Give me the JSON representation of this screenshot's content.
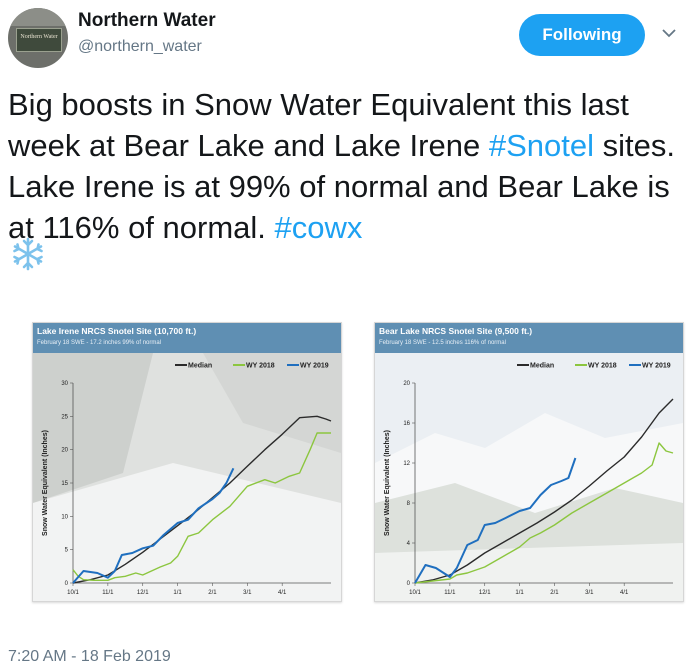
{
  "header": {
    "display_name": "Northern Water",
    "handle": "@northern_water",
    "follow_label": "Following",
    "avatar_icon": "northern-water-sign-avatar",
    "chevron_icon": "chevron-down-icon"
  },
  "tweet": {
    "text_1": "Big boosts in Snow Water Equivalent this last week at Bear Lake and Lake Irene ",
    "hashtag_snotel": "#Snotel",
    "text_2": " sites. Lake Irene is at 99% of normal and Bear Lake is at 116% of normal. ",
    "hashtag_cowx": "#cowx",
    "emoji": "snowflake-icon"
  },
  "timestamp": "7:20 AM - 18 Feb 2019",
  "colors": {
    "accent": "#1da1f2",
    "median": "#2b2b2b",
    "wy2018": "#8cc63f",
    "wy2019": "#1f6fbf",
    "chart_header": "#5f8fb3"
  },
  "chart_data": [
    {
      "type": "line",
      "title": "Lake Irene NRCS Snotel Site (10,700 ft.)",
      "subtitle": "February 18 SWE - 17.2 inches   99% of normal",
      "ylabel": "Snow Water Equivalent (Inches)",
      "xlabel": "",
      "ylim": [
        0,
        30
      ],
      "yticks": [
        0,
        5,
        10,
        15,
        20,
        25,
        30
      ],
      "xlim": [
        0,
        7.4
      ],
      "xtick_labels": [
        "10/1",
        "11/1",
        "12/1",
        "1/1",
        "2/1",
        "3/1",
        "4/1"
      ],
      "legend": "top-right",
      "grid": false,
      "series": [
        {
          "name": "Median",
          "color": "#2b2b2b",
          "x": [
            0,
            0.5,
            1,
            1.5,
            2,
            2.5,
            3,
            3.5,
            4,
            4.5,
            5,
            5.5,
            6,
            6.5,
            7,
            7.25,
            7.4
          ],
          "y": [
            0,
            0.5,
            1.2,
            2.8,
            4.6,
            6.6,
            8.6,
            10.6,
            12.8,
            15.0,
            17.5,
            20.0,
            22.3,
            24.8,
            25.0,
            24.6,
            24.3
          ]
        },
        {
          "name": "WY 2018",
          "color": "#8cc63f",
          "x": [
            0,
            0.15,
            0.3,
            0.6,
            1,
            1.2,
            1.5,
            1.8,
            2,
            2.5,
            2.8,
            3,
            3.3,
            3.6,
            4,
            4.5,
            5,
            5.5,
            5.8,
            6.2,
            6.5,
            6.8,
            7,
            7.4
          ],
          "y": [
            2.0,
            1.0,
            0.5,
            0.4,
            0.4,
            0.8,
            1.0,
            1.5,
            1.2,
            2.4,
            3.0,
            4.0,
            7.0,
            7.5,
            9.5,
            11.5,
            14.5,
            15.5,
            15.0,
            16.0,
            16.5,
            20.0,
            22.5,
            22.5
          ]
        },
        {
          "name": "WY 2019",
          "color": "#1f6fbf",
          "x": [
            0,
            0.3,
            0.7,
            1,
            1.2,
            1.4,
            1.7,
            2,
            2.3,
            2.6,
            3,
            3.3,
            3.6,
            4,
            4.2,
            4.4,
            4.6
          ],
          "y": [
            0,
            1.8,
            1.5,
            0.8,
            1.8,
            4.2,
            4.5,
            5.2,
            5.6,
            7.2,
            9.0,
            9.5,
            11.2,
            12.6,
            13.5,
            15.0,
            17.2
          ]
        }
      ]
    },
    {
      "type": "line",
      "title": "Bear Lake NRCS Snotel Site (9,500 ft.)",
      "subtitle": "February 18 SWE - 12.5 inches   116% of normal",
      "ylabel": "Snow Water Equivalent (Inches)",
      "xlabel": "",
      "ylim": [
        0,
        20
      ],
      "yticks": [
        0,
        4,
        8,
        12,
        16,
        20
      ],
      "xlim": [
        0,
        7.4
      ],
      "xtick_labels": [
        "10/1",
        "11/1",
        "12/1",
        "1/1",
        "2/1",
        "3/1",
        "4/1"
      ],
      "legend": "top-right",
      "grid": false,
      "series": [
        {
          "name": "Median",
          "color": "#2b2b2b",
          "x": [
            0,
            0.5,
            1,
            1.5,
            2,
            2.5,
            3,
            3.5,
            4,
            4.5,
            5,
            5.5,
            6,
            6.5,
            7,
            7.4
          ],
          "y": [
            0,
            0.3,
            0.8,
            1.8,
            3.0,
            4.0,
            5.0,
            6.0,
            7.1,
            8.3,
            9.7,
            11.2,
            12.6,
            14.6,
            17.0,
            18.4
          ]
        },
        {
          "name": "WY 2018",
          "color": "#8cc63f",
          "x": [
            0,
            0.5,
            1,
            1.2,
            1.5,
            2,
            2.5,
            3,
            3.3,
            3.6,
            4,
            4.5,
            5,
            5.5,
            6,
            6.5,
            6.8,
            7,
            7.2,
            7.4
          ],
          "y": [
            0,
            0.2,
            0.4,
            0.8,
            1.0,
            1.6,
            2.6,
            3.6,
            4.5,
            5.0,
            5.8,
            7.0,
            8.0,
            9.0,
            10.0,
            11.0,
            11.8,
            14.0,
            13.2,
            13.0
          ]
        },
        {
          "name": "WY 2019",
          "color": "#1f6fbf",
          "x": [
            0,
            0.3,
            0.6,
            1,
            1.2,
            1.5,
            1.8,
            2,
            2.3,
            2.6,
            3,
            3.3,
            3.6,
            3.9,
            4.2,
            4.4,
            4.6
          ],
          "y": [
            0,
            1.8,
            1.5,
            0.6,
            1.5,
            3.8,
            4.3,
            5.8,
            6.0,
            6.5,
            7.2,
            7.5,
            8.8,
            9.8,
            10.2,
            10.5,
            12.5
          ]
        }
      ]
    }
  ]
}
